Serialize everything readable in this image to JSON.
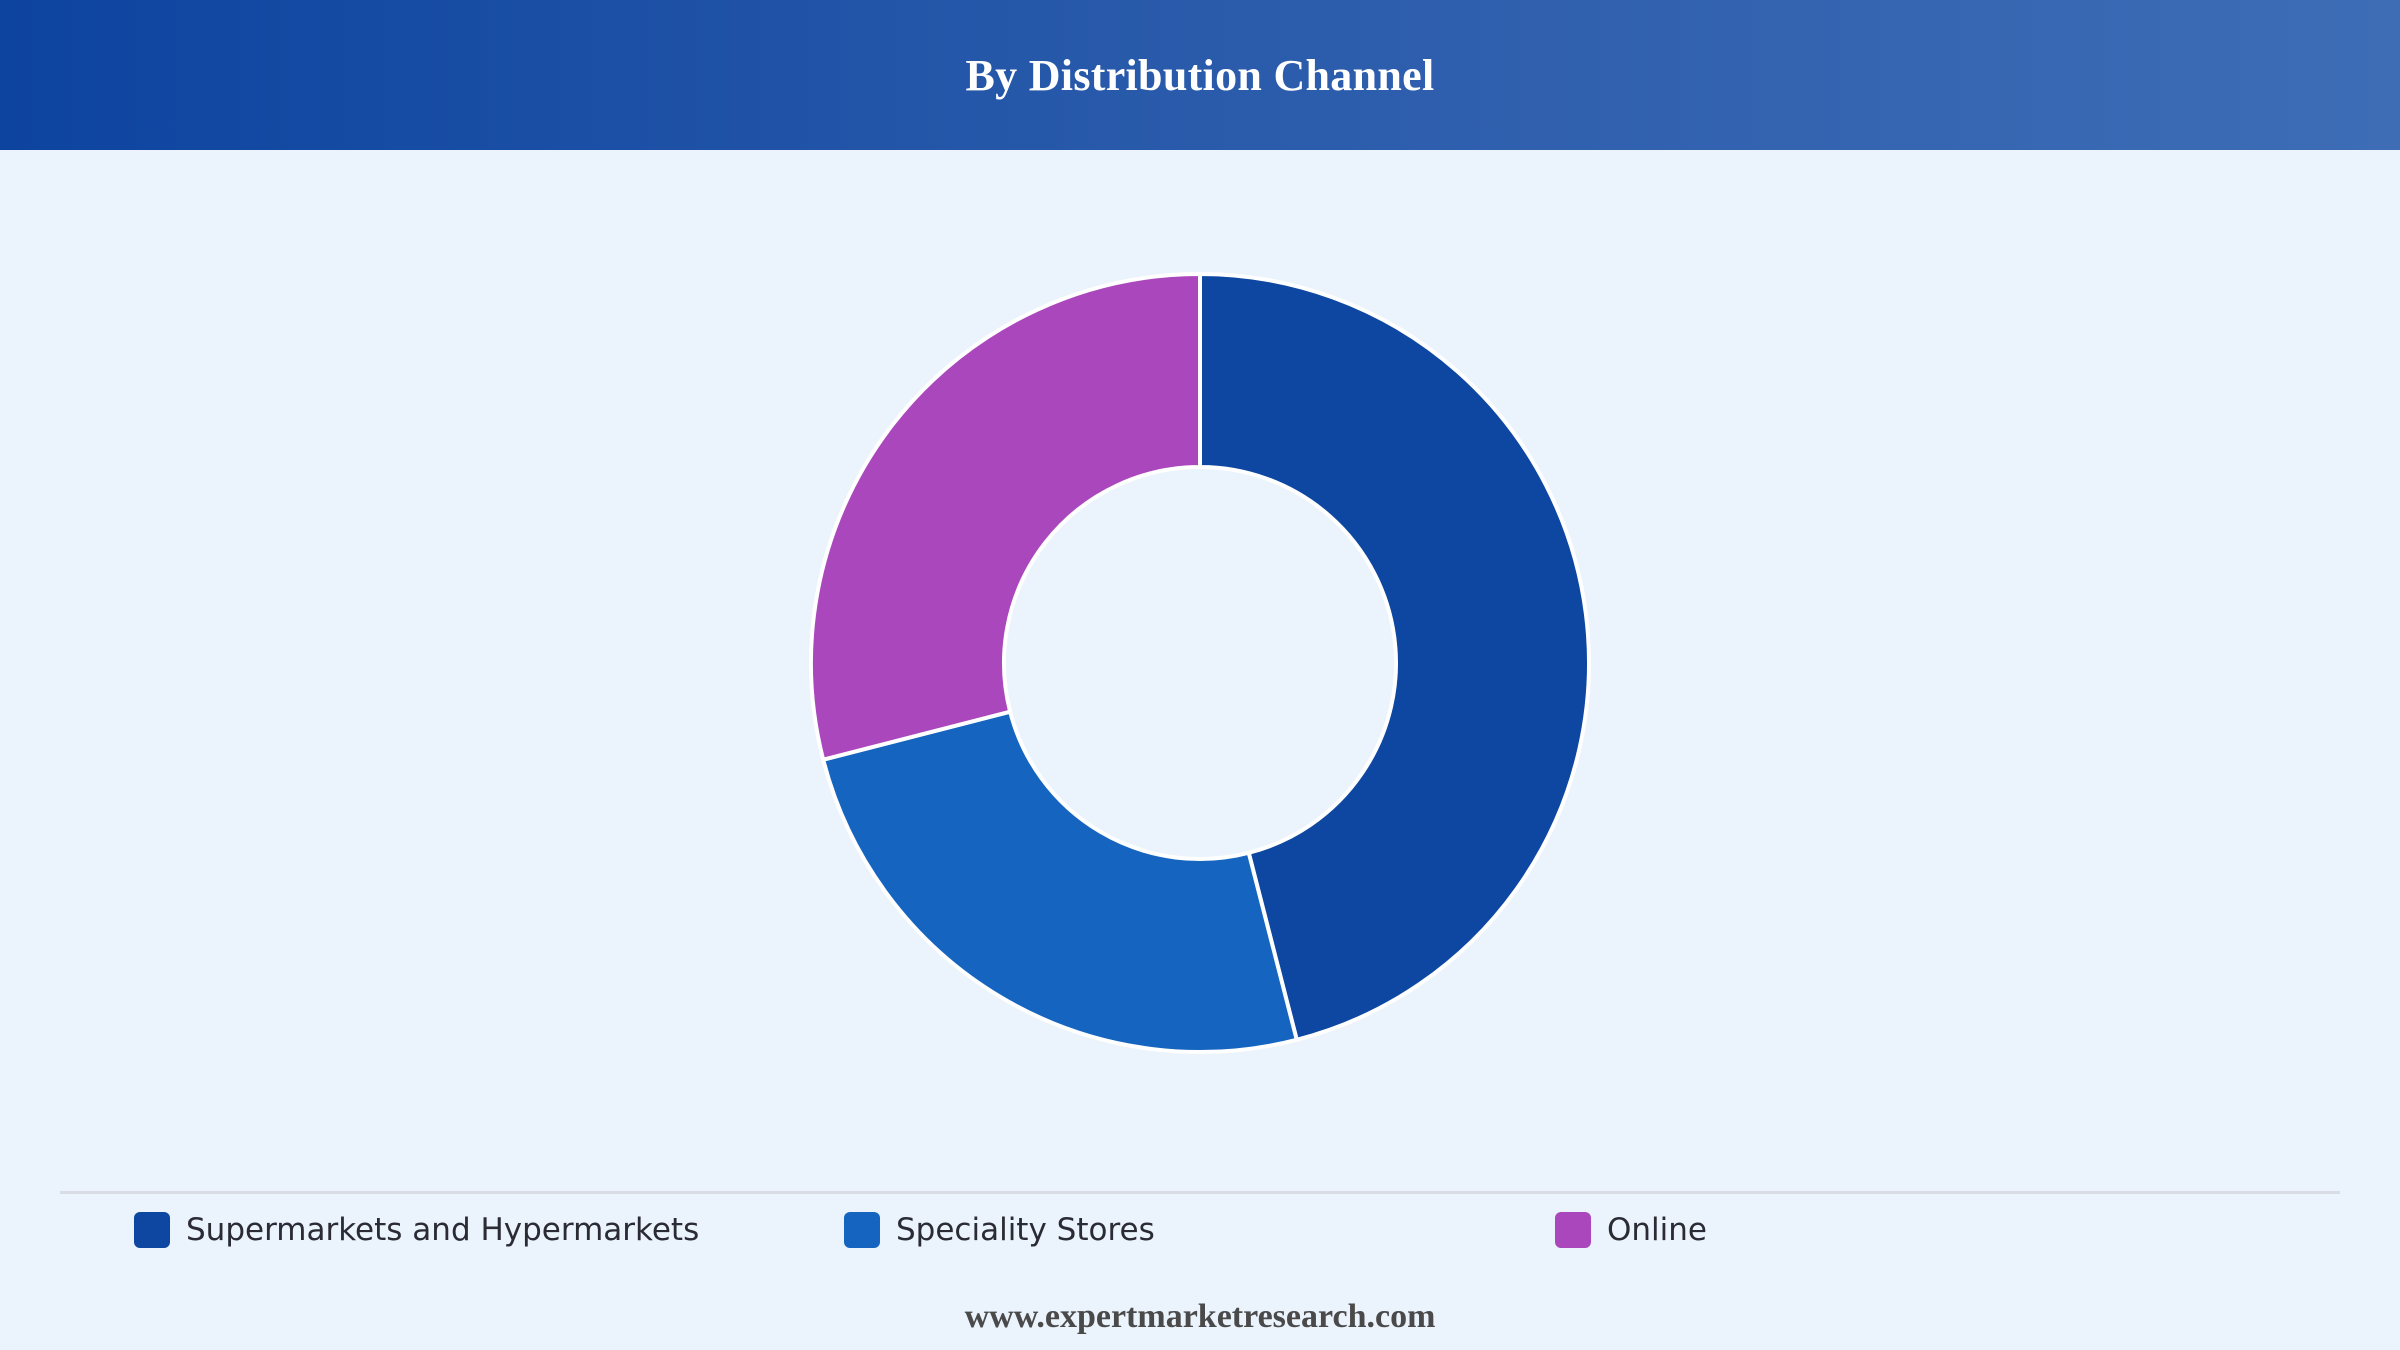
{
  "header": {
    "title": "By Distribution Channel"
  },
  "chart_data": {
    "type": "pie",
    "variant": "donut",
    "title": "By Distribution Channel",
    "categories": [
      "Supermarkets and Hypermarkets",
      "Speciality Stores",
      "Online"
    ],
    "values": [
      46,
      25,
      29
    ],
    "colors": [
      "#0d47a1",
      "#1565c0",
      "#ab47bc"
    ],
    "legend_position": "bottom",
    "labels_shown": false
  },
  "legend": {
    "items": [
      {
        "label": "Supermarkets and Hypermarkets",
        "color": "#0d47a1"
      },
      {
        "label": "Speciality Stores",
        "color": "#1565c0"
      },
      {
        "label": "Online",
        "color": "#ab47bc"
      }
    ]
  },
  "footer": {
    "source": "www.expertmarketresearch.com"
  }
}
